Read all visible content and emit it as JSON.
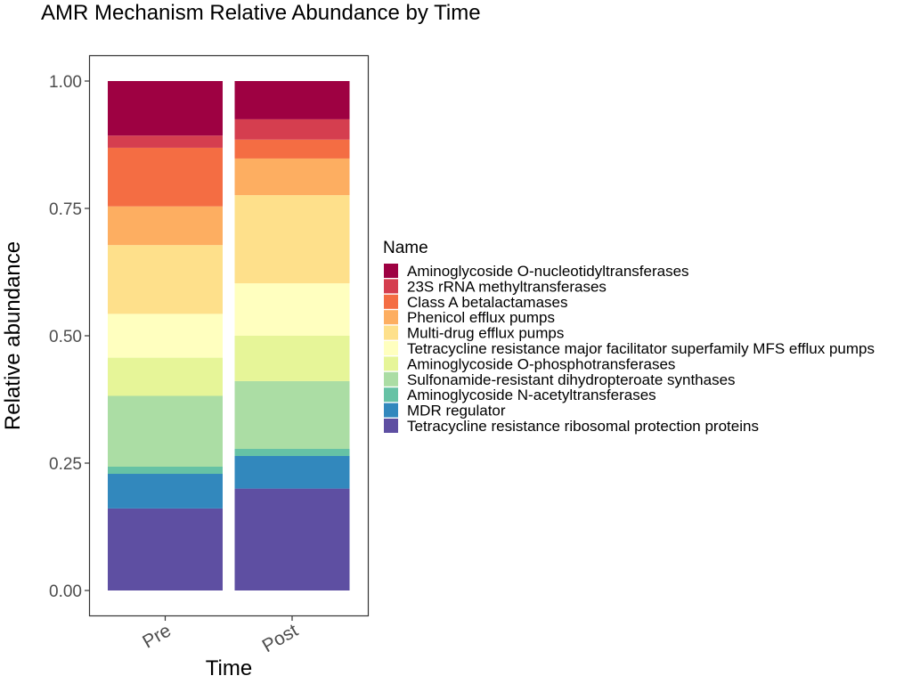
{
  "chart_data": {
    "type": "bar",
    "stacked": true,
    "title": "AMR Mechanism Relative Abundance by Time",
    "xlabel": "Time",
    "ylabel": "Relative abundance",
    "categories": [
      "Pre",
      "Post"
    ],
    "ylim": [
      0,
      1
    ],
    "yticks": [
      "0.00",
      "0.25",
      "0.50",
      "0.75",
      "1.00"
    ],
    "ytick_values": [
      0,
      0.25,
      0.5,
      0.75,
      1.0
    ],
    "grid": false,
    "legend_title": "Name",
    "legend_position": "right",
    "series": [
      {
        "name": "Tetracycline resistance ribosomal protection proteins",
        "color": "#5E4FA2",
        "values": [
          0.161,
          0.2
        ]
      },
      {
        "name": "MDR regulator",
        "color": "#3288BD",
        "values": [
          0.068,
          0.064
        ]
      },
      {
        "name": "Aminoglycoside N-acetyltransferases",
        "color": "#66C2A5",
        "values": [
          0.014,
          0.014
        ]
      },
      {
        "name": "Sulfonamide-resistant dihydropteroate synthases",
        "color": "#ABDDA4",
        "values": [
          0.139,
          0.133
        ]
      },
      {
        "name": "Aminoglycoside O-phosphotransferases",
        "color": "#E6F598",
        "values": [
          0.075,
          0.089
        ]
      },
      {
        "name": "Tetracycline resistance major facilitator superfamily MFS efflux pumps",
        "color": "#FFFFBF",
        "values": [
          0.086,
          0.103
        ]
      },
      {
        "name": "Multi-drug efflux pumps",
        "color": "#FEE08B",
        "values": [
          0.135,
          0.173
        ]
      },
      {
        "name": "Phenicol efflux pumps",
        "color": "#FDAE61",
        "values": [
          0.076,
          0.072
        ]
      },
      {
        "name": "Class A betalactamases",
        "color": "#F46D43",
        "values": [
          0.115,
          0.037
        ]
      },
      {
        "name": "23S rRNA methyltransferases",
        "color": "#D53E4F",
        "values": [
          0.024,
          0.04
        ]
      },
      {
        "name": "Aminoglycoside O-nucleotidyltransferases",
        "color": "#9E0142",
        "values": [
          0.107,
          0.075
        ]
      }
    ]
  }
}
